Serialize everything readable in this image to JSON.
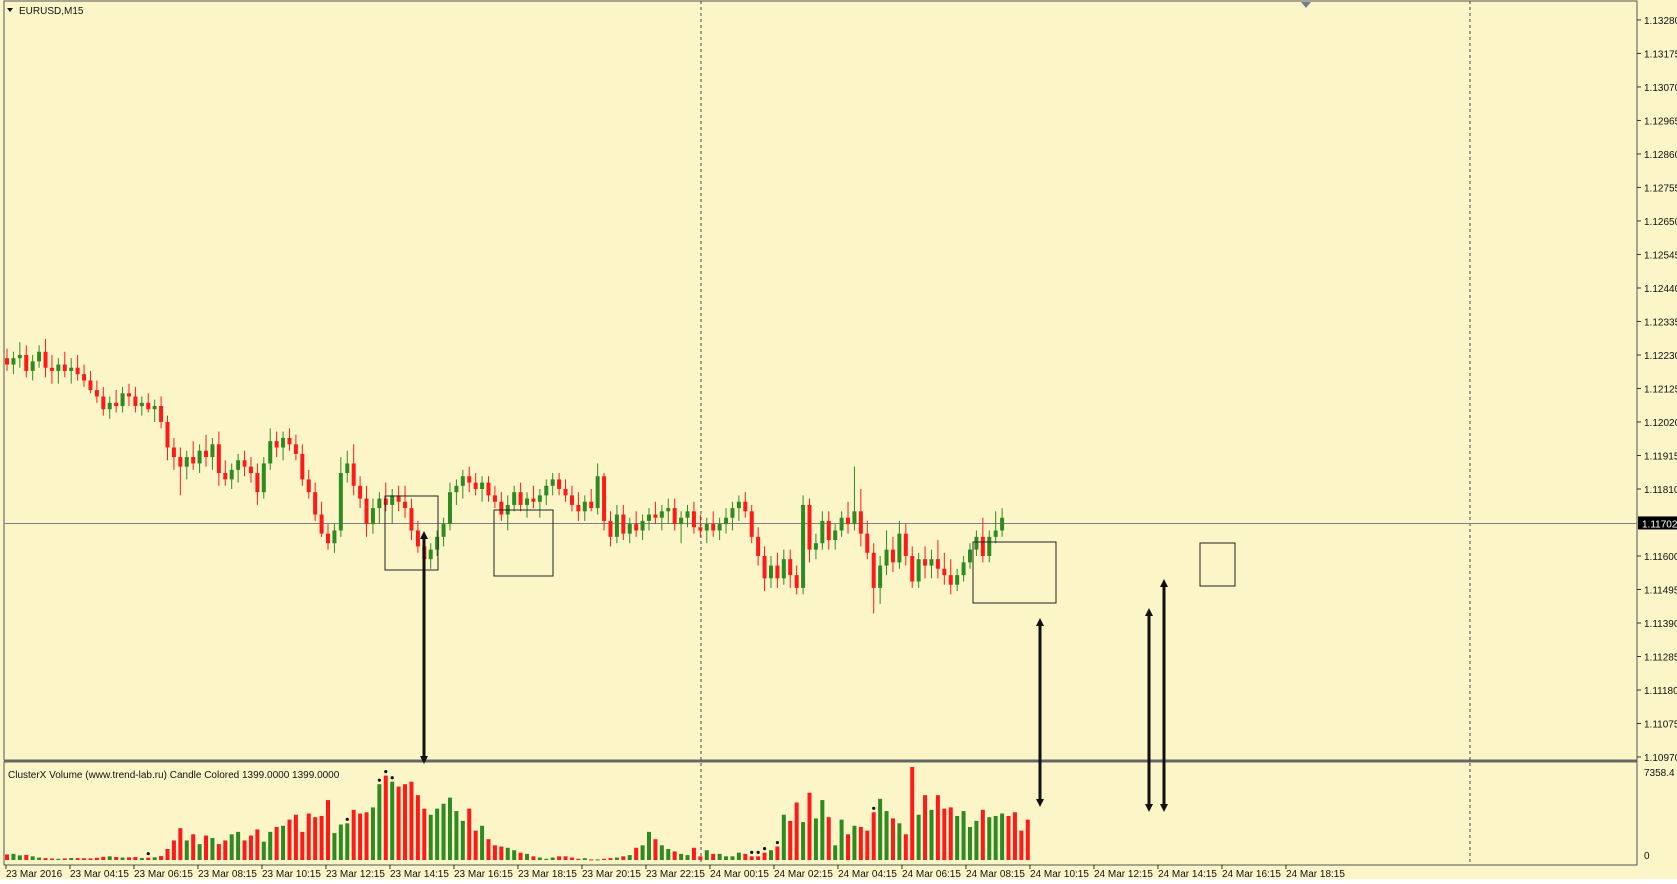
{
  "main": {
    "symbol_label": "EURUSD,M15",
    "price_ticks": [
      "1.13280",
      "1.13175",
      "1.13070",
      "1.12965",
      "1.12860",
      "1.12755",
      "1.12650",
      "1.12545",
      "1.12440",
      "1.12335",
      "1.12230",
      "1.12125",
      "1.12020",
      "1.11915",
      "1.11810",
      "1.11600",
      "1.11495",
      "1.11390",
      "1.11285",
      "1.11180",
      "1.11075",
      "1.10970"
    ],
    "current_price": "1.11702"
  },
  "indicator": {
    "title": "ClusterX Volume (www.trend-lab.ru) Candle Colored 1399.0000 1399.0000",
    "max_label": "7358.4",
    "zero_label": "0"
  },
  "time_labels": [
    "23 Mar 2016",
    "23 Mar 04:15",
    "23 Mar 06:15",
    "23 Mar 08:15",
    "23 Mar 10:15",
    "23 Mar 12:15",
    "23 Mar 14:15",
    "23 Mar 16:15",
    "23 Mar 18:15",
    "23 Mar 20:15",
    "23 Mar 22:15",
    "24 Mar 00:15",
    "24 Mar 02:15",
    "24 Mar 04:15",
    "24 Mar 06:15",
    "24 Mar 08:15",
    "24 Mar 10:15",
    "24 Mar 12:15",
    "24 Mar 14:15",
    "24 Mar 16:15",
    "24 Mar 18:15"
  ],
  "colors": {
    "background": "#fbf5c8",
    "bull": "#2e8b22",
    "bear": "#ff1a1a",
    "grid": "#444444",
    "current_line": "#808080",
    "annotation": "#111111"
  },
  "chart_data": {
    "type": "candlestick",
    "ylim": [
      1.1097,
      1.1333
    ],
    "current_price": 1.11702,
    "candles": [
      [
        1.1222,
        1.1225,
        1.1218,
        1.122
      ],
      [
        1.122,
        1.1224,
        1.1217,
        1.1222
      ],
      [
        1.1222,
        1.1227,
        1.1219,
        1.1223
      ],
      [
        1.1223,
        1.1226,
        1.1216,
        1.1218
      ],
      [
        1.1218,
        1.1223,
        1.1215,
        1.1221
      ],
      [
        1.1221,
        1.1226,
        1.1219,
        1.1224
      ],
      [
        1.1224,
        1.1228,
        1.1216,
        1.1219
      ],
      [
        1.1219,
        1.1223,
        1.1214,
        1.1218
      ],
      [
        1.1218,
        1.1222,
        1.1214,
        1.122
      ],
      [
        1.122,
        1.1224,
        1.1216,
        1.1218
      ],
      [
        1.1218,
        1.1222,
        1.1214,
        1.1219
      ],
      [
        1.1219,
        1.1223,
        1.1215,
        1.1217
      ],
      [
        1.1217,
        1.122,
        1.1213,
        1.1215
      ],
      [
        1.1215,
        1.1218,
        1.1211,
        1.1212
      ],
      [
        1.1212,
        1.1215,
        1.1208,
        1.121
      ],
      [
        1.121,
        1.1213,
        1.1204,
        1.1206
      ],
      [
        1.1206,
        1.121,
        1.1203,
        1.1208
      ],
      [
        1.1208,
        1.1212,
        1.1205,
        1.1207
      ],
      [
        1.1207,
        1.1213,
        1.1205,
        1.1211
      ],
      [
        1.1211,
        1.1214,
        1.1207,
        1.121
      ],
      [
        1.121,
        1.1213,
        1.1205,
        1.1207
      ],
      [
        1.1207,
        1.121,
        1.1204,
        1.1208
      ],
      [
        1.1208,
        1.1211,
        1.1205,
        1.1206
      ],
      [
        1.1206,
        1.1209,
        1.1202,
        1.1207
      ],
      [
        1.1207,
        1.121,
        1.12,
        1.1202
      ],
      [
        1.1202,
        1.1204,
        1.119,
        1.1194
      ],
      [
        1.1194,
        1.1197,
        1.1187,
        1.1191
      ],
      [
        1.1191,
        1.1194,
        1.1179,
        1.1188
      ],
      [
        1.1188,
        1.1193,
        1.1184,
        1.1191
      ],
      [
        1.1191,
        1.1196,
        1.1187,
        1.1189
      ],
      [
        1.1189,
        1.1195,
        1.1186,
        1.1193
      ],
      [
        1.1193,
        1.1198,
        1.1188,
        1.1191
      ],
      [
        1.1191,
        1.1197,
        1.1187,
        1.1195
      ],
      [
        1.1195,
        1.1199,
        1.1182,
        1.1186
      ],
      [
        1.1186,
        1.119,
        1.1182,
        1.1184
      ],
      [
        1.1184,
        1.1189,
        1.1181,
        1.1187
      ],
      [
        1.1187,
        1.1192,
        1.1183,
        1.119
      ],
      [
        1.119,
        1.1193,
        1.1185,
        1.1188
      ],
      [
        1.1188,
        1.1191,
        1.1183,
        1.1186
      ],
      [
        1.1186,
        1.1189,
        1.1176,
        1.118
      ],
      [
        1.118,
        1.1191,
        1.1178,
        1.1189
      ],
      [
        1.1189,
        1.12,
        1.1187,
        1.1196
      ],
      [
        1.1196,
        1.1199,
        1.1191,
        1.1194
      ],
      [
        1.1194,
        1.1199,
        1.119,
        1.1197
      ],
      [
        1.1197,
        1.12,
        1.1193,
        1.1195
      ],
      [
        1.1195,
        1.1198,
        1.119,
        1.1192
      ],
      [
        1.1192,
        1.1195,
        1.1182,
        1.1184
      ],
      [
        1.1184,
        1.1187,
        1.1178,
        1.118
      ],
      [
        1.118,
        1.1183,
        1.1171,
        1.1173
      ],
      [
        1.1173,
        1.1177,
        1.1166,
        1.1167
      ],
      [
        1.1167,
        1.117,
        1.1162,
        1.1164
      ],
      [
        1.1164,
        1.117,
        1.1161,
        1.1168
      ],
      [
        1.1168,
        1.1191,
        1.1166,
        1.1186
      ],
      [
        1.1186,
        1.1193,
        1.1183,
        1.1189
      ],
      [
        1.1189,
        1.1195,
        1.1179,
        1.1182
      ],
      [
        1.1182,
        1.1185,
        1.1175,
        1.1178
      ],
      [
        1.1178,
        1.1182,
        1.1166,
        1.117
      ],
      [
        1.117,
        1.1178,
        1.1167,
        1.1175
      ],
      [
        1.1175,
        1.118,
        1.117,
        1.1178
      ],
      [
        1.1178,
        1.1183,
        1.1174,
        1.1176
      ],
      [
        1.1176,
        1.1181,
        1.117,
        1.1179
      ],
      [
        1.1179,
        1.1182,
        1.1174,
        1.1177
      ],
      [
        1.1177,
        1.1182,
        1.1172,
        1.1175
      ],
      [
        1.1175,
        1.1178,
        1.1165,
        1.1168
      ],
      [
        1.1168,
        1.1171,
        1.1161,
        1.1163
      ],
      [
        1.1163,
        1.1166,
        1.1157,
        1.1159
      ],
      [
        1.1159,
        1.1164,
        1.1156,
        1.1162
      ],
      [
        1.1162,
        1.1168,
        1.116,
        1.1166
      ],
      [
        1.1166,
        1.1172,
        1.1163,
        1.117
      ],
      [
        1.117,
        1.1183,
        1.1168,
        1.118
      ],
      [
        1.118,
        1.1184,
        1.1176,
        1.1182
      ],
      [
        1.1182,
        1.1187,
        1.1178,
        1.1185
      ],
      [
        1.1185,
        1.1188,
        1.118,
        1.1183
      ],
      [
        1.1183,
        1.1186,
        1.1179,
        1.1181
      ],
      [
        1.1181,
        1.1185,
        1.1177,
        1.1183
      ],
      [
        1.1183,
        1.1185,
        1.1177,
        1.1179
      ],
      [
        1.1179,
        1.1182,
        1.1175,
        1.1177
      ],
      [
        1.1177,
        1.118,
        1.1171,
        1.1173
      ],
      [
        1.1173,
        1.1179,
        1.1168,
        1.1176
      ],
      [
        1.1176,
        1.1182,
        1.1174,
        1.118
      ],
      [
        1.118,
        1.1183,
        1.1174,
        1.1176
      ],
      [
        1.1176,
        1.118,
        1.1172,
        1.1178
      ],
      [
        1.1178,
        1.1182,
        1.1175,
        1.1177
      ],
      [
        1.1177,
        1.1181,
        1.1172,
        1.1179
      ],
      [
        1.1179,
        1.1184,
        1.1176,
        1.1182
      ],
      [
        1.1182,
        1.1186,
        1.1179,
        1.1184
      ],
      [
        1.1184,
        1.1186,
        1.1179,
        1.1181
      ],
      [
        1.1181,
        1.1184,
        1.1177,
        1.1179
      ],
      [
        1.1179,
        1.1182,
        1.1174,
        1.1176
      ],
      [
        1.1176,
        1.118,
        1.1171,
        1.1174
      ],
      [
        1.1174,
        1.1179,
        1.1171,
        1.1177
      ],
      [
        1.1177,
        1.1181,
        1.1174,
        1.1175
      ],
      [
        1.1175,
        1.1189,
        1.1173,
        1.1185
      ],
      [
        1.1185,
        1.1186,
        1.1168,
        1.1171
      ],
      [
        1.1171,
        1.1174,
        1.1163,
        1.1166
      ],
      [
        1.1166,
        1.1176,
        1.1164,
        1.1173
      ],
      [
        1.1173,
        1.1176,
        1.1165,
        1.1167
      ],
      [
        1.1167,
        1.1172,
        1.1164,
        1.117
      ],
      [
        1.117,
        1.1174,
        1.1166,
        1.1168
      ],
      [
        1.1168,
        1.1173,
        1.1165,
        1.1171
      ],
      [
        1.1171,
        1.1175,
        1.1168,
        1.1173
      ],
      [
        1.1173,
        1.1177,
        1.117,
        1.1172
      ],
      [
        1.1172,
        1.1176,
        1.1168,
        1.1174
      ],
      [
        1.1174,
        1.1178,
        1.117,
        1.1175
      ],
      [
        1.1175,
        1.1178,
        1.1168,
        1.117
      ],
      [
        1.117,
        1.1174,
        1.1164,
        1.1172
      ],
      [
        1.1172,
        1.1176,
        1.1169,
        1.1174
      ],
      [
        1.1174,
        1.1177,
        1.1167,
        1.1169
      ],
      [
        1.1169,
        1.1173,
        1.1166,
        1.1168
      ],
      [
        1.1168,
        1.1172,
        1.1164,
        1.117
      ],
      [
        1.117,
        1.1174,
        1.1166,
        1.1168
      ],
      [
        1.1168,
        1.1172,
        1.1165,
        1.117
      ],
      [
        1.117,
        1.1175,
        1.1167,
        1.1172
      ],
      [
        1.1172,
        1.1177,
        1.1168,
        1.1175
      ],
      [
        1.1175,
        1.1179,
        1.1171,
        1.1177
      ],
      [
        1.1177,
        1.118,
        1.1172,
        1.1174
      ],
      [
        1.1174,
        1.1176,
        1.1164,
        1.1166
      ],
      [
        1.1166,
        1.1169,
        1.1157,
        1.116
      ],
      [
        1.116,
        1.1163,
        1.1149,
        1.1153
      ],
      [
        1.1153,
        1.116,
        1.115,
        1.1157
      ],
      [
        1.1157,
        1.1161,
        1.115,
        1.1153
      ],
      [
        1.1153,
        1.1162,
        1.1151,
        1.1159
      ],
      [
        1.1159,
        1.1162,
        1.115,
        1.1154
      ],
      [
        1.1154,
        1.1157,
        1.1148,
        1.115
      ],
      [
        1.115,
        1.1179,
        1.1148,
        1.1176
      ],
      [
        1.1176,
        1.1178,
        1.1158,
        1.1162
      ],
      [
        1.1162,
        1.1167,
        1.1159,
        1.1164
      ],
      [
        1.1164,
        1.1174,
        1.1162,
        1.1171
      ],
      [
        1.1171,
        1.1174,
        1.1162,
        1.1165
      ],
      [
        1.1165,
        1.117,
        1.1162,
        1.1168
      ],
      [
        1.1168,
        1.1174,
        1.1166,
        1.1172
      ],
      [
        1.1172,
        1.1177,
        1.1167,
        1.117
      ],
      [
        1.117,
        1.1188,
        1.1168,
        1.1174
      ],
      [
        1.1174,
        1.1181,
        1.1163,
        1.1167
      ],
      [
        1.1167,
        1.1171,
        1.1159,
        1.1161
      ],
      [
        1.1161,
        1.1164,
        1.1142,
        1.115
      ],
      [
        1.115,
        1.116,
        1.1145,
        1.1157
      ],
      [
        1.1157,
        1.1168,
        1.1154,
        1.1162
      ],
      [
        1.1162,
        1.1166,
        1.1155,
        1.1158
      ],
      [
        1.1158,
        1.1171,
        1.1156,
        1.1167
      ],
      [
        1.1167,
        1.117,
        1.1157,
        1.116
      ],
      [
        1.116,
        1.1163,
        1.115,
        1.1152
      ],
      [
        1.1152,
        1.1161,
        1.115,
        1.1159
      ],
      [
        1.1159,
        1.1163,
        1.1153,
        1.1157
      ],
      [
        1.1157,
        1.1162,
        1.1153,
        1.1159
      ],
      [
        1.1159,
        1.1165,
        1.1153,
        1.1156
      ],
      [
        1.1156,
        1.1161,
        1.1151,
        1.1154
      ],
      [
        1.1154,
        1.1159,
        1.1148,
        1.1151
      ],
      [
        1.1151,
        1.1156,
        1.1149,
        1.1154
      ],
      [
        1.1154,
        1.116,
        1.1152,
        1.1158
      ],
      [
        1.1158,
        1.1164,
        1.1156,
        1.1162
      ],
      [
        1.1162,
        1.1168,
        1.116,
        1.1166
      ],
      [
        1.1166,
        1.1172,
        1.1158,
        1.116
      ],
      [
        1.116,
        1.1168,
        1.1158,
        1.1166
      ],
      [
        1.1166,
        1.1174,
        1.1164,
        1.1168
      ],
      [
        1.1168,
        1.1175,
        1.1166,
        1.1172
      ]
    ],
    "volume": {
      "ylim": [
        0,
        7358.4
      ],
      "values": [
        450,
        500,
        380,
        420,
        300,
        200,
        150,
        120,
        100,
        130,
        160,
        150,
        140,
        130,
        180,
        260,
        300,
        250,
        200,
        220,
        240,
        160,
        190,
        220,
        320,
        900,
        1600,
        2600,
        1600,
        2100,
        1300,
        2000,
        1800,
        1300,
        1600,
        2100,
        2300,
        1600,
        2000,
        2500,
        1500,
        2300,
        2700,
        2800,
        3300,
        3700,
        2300,
        3800,
        3500,
        3600,
        4900,
        2200,
        2900,
        3000,
        4100,
        3800,
        3900,
        4300,
        6200,
        6900,
        6400,
        6000,
        6200,
        6400,
        5300,
        4200,
        3700,
        4200,
        4600,
        5100,
        4000,
        3200,
        4200,
        2400,
        2800,
        1700,
        1200,
        1100,
        1000,
        800,
        600,
        500,
        300,
        200,
        100,
        200,
        300,
        300,
        200,
        100,
        150,
        50,
        50,
        100,
        150,
        200,
        300,
        400,
        1000,
        1200,
        2300,
        1700,
        1200,
        900,
        700,
        500,
        400,
        1000,
        300,
        800,
        500,
        500,
        300,
        300,
        600,
        500,
        300,
        300,
        600,
        800,
        1100,
        3700,
        3200,
        4700,
        3100,
        5500,
        3400,
        4900,
        3500,
        1200,
        3300,
        2100,
        2800,
        2700,
        2400,
        3900,
        5000,
        4000,
        3400,
        3000,
        2100,
        7600,
        3700,
        5300,
        4100,
        5300,
        4200,
        4300,
        3600,
        4000,
        2700,
        3200,
        4100,
        3500,
        3600,
        3800,
        3600,
        3900,
        2400,
        3300
      ],
      "dot_markers": [
        22,
        53,
        58,
        59,
        60,
        116,
        117,
        118,
        120,
        135
      ]
    }
  }
}
